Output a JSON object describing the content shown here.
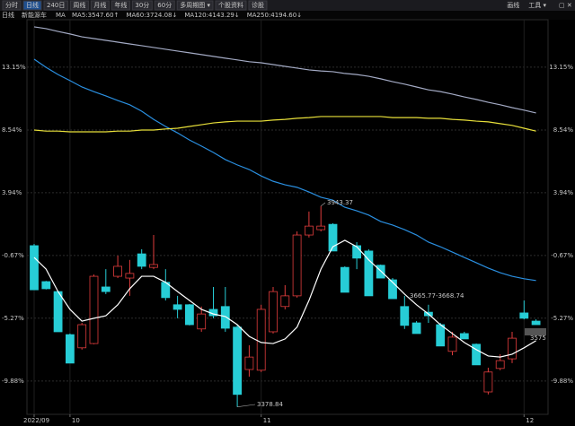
{
  "toolbar": {
    "tabs": [
      "分时",
      "日线",
      "240日",
      "周线",
      "月线",
      "年线",
      "30分",
      "60分",
      "多周期图 ▾",
      "个股资料",
      "诊股"
    ],
    "tools": [
      "画线",
      "工具 ▾"
    ]
  },
  "header": {
    "period": "日线",
    "name": "新能源车",
    "ma": "MA"
  },
  "chart_data": {
    "type": "candlestick",
    "categories": [
      "2022/09",
      null,
      null,
      "10",
      null,
      null,
      null,
      null,
      null,
      null,
      null,
      null,
      null,
      null,
      null,
      null,
      null,
      null,
      null,
      "11",
      null,
      null,
      null,
      null,
      null,
      null,
      null,
      null,
      null,
      null,
      null,
      null,
      null,
      null,
      null,
      null,
      null,
      null,
      null,
      null,
      null,
      "12",
      null
    ],
    "open": [
      3832,
      3731,
      3703,
      3582,
      3545,
      3557,
      3716,
      3746,
      3741,
      3809,
      3771,
      3729,
      3666,
      3666,
      3598,
      3653,
      3661,
      3603,
      3484,
      3482,
      3590,
      3661,
      3691,
      3862,
      3877,
      3892,
      3771,
      3832,
      3817,
      3777,
      3736,
      3661,
      3615,
      3645,
      3610,
      3535,
      3585,
      3555,
      3421,
      3487,
      3514,
      3643,
      3620
    ],
    "high": [
      3837,
      3733,
      3705,
      3585,
      3615,
      3751,
      3766,
      3804,
      3792,
      3822,
      3862,
      3766,
      3691,
      3668,
      3661,
      3716,
      3716,
      3610,
      3552,
      3666,
      3716,
      3721,
      3872,
      3928,
      3943.37,
      3895,
      3774,
      3842,
      3822,
      3779,
      3741,
      3691,
      3620,
      3666,
      3615,
      3590,
      3590,
      3557,
      3489,
      3527,
      3590,
      3678,
      3625
    ],
    "low": [
      3708,
      3709,
      3590,
      3502,
      3540,
      3555,
      3696,
      3741,
      3691,
      3766,
      3766,
      3678,
      3628,
      3608,
      3590,
      3628,
      3590,
      3378.84,
      3464,
      3477,
      3585,
      3653,
      3686,
      3855,
      3872,
      3817,
      3701,
      3766,
      3691,
      3741,
      3683,
      3598,
      3585,
      3615,
      3550,
      3524,
      3570,
      3497,
      3414,
      3482,
      3502,
      3625,
      3610
    ],
    "close": [
      3708,
      3711,
      3590,
      3502,
      3610,
      3746,
      3703,
      3774,
      3754,
      3774,
      3779,
      3686,
      3653,
      3610,
      3640,
      3635,
      3600,
      3414,
      3519,
      3653,
      3703,
      3691,
      3862,
      3887,
      3887,
      3817,
      3701,
      3797,
      3691,
      3741,
      3683,
      3608,
      3585,
      3635,
      3550,
      3575,
      3570,
      3497,
      3477,
      3509,
      3572,
      3628,
      3610
    ],
    "up_color": "#e03c3c",
    "down_color": "#27cdd6",
    "ylim": [
      3358,
      4467
    ],
    "yticks": [
      {
        "value": 4333.6,
        "label": "13.15%"
      },
      {
        "value": 4157.1,
        "label": "8.54%"
      },
      {
        "value": 3980.9,
        "label": "3.94%"
      },
      {
        "value": 3804.3,
        "label": "-0.67%"
      },
      {
        "value": 3628.2,
        "label": "-5.27%"
      },
      {
        "value": 3451.6,
        "label": "-9.88%"
      }
    ],
    "tick_colors": [
      "#e03c3c",
      "#e03c3c",
      "#e03c3c",
      "#e03c3c",
      "#30c030",
      "#30c030"
    ],
    "grid": true,
    "series": [
      {
        "name": "MA5:3547.60↑",
        "color": "#ffffff",
        "values": [
          3799,
          3766,
          3703,
          3653,
          3620,
          3628,
          3635,
          3666,
          3711,
          3746,
          3746,
          3729,
          3703,
          3678,
          3653,
          3640,
          3633,
          3610,
          3577,
          3560,
          3557,
          3570,
          3603,
          3678,
          3766,
          3829,
          3847,
          3829,
          3792,
          3761,
          3729,
          3696,
          3666,
          3640,
          3610,
          3585,
          3560,
          3540,
          3522,
          3519,
          3527,
          3545,
          3565
        ]
      },
      {
        "name": "MA60:3724.08↓",
        "color": "#2a8fe0",
        "values": [
          4356,
          4333,
          4313,
          4296,
          4278,
          4265,
          4253,
          4240,
          4228,
          4210,
          4187,
          4167,
          4149,
          4129,
          4112,
          4094,
          4074,
          4059,
          4046,
          4028,
          4013,
          4003,
          3996,
          3983,
          3968,
          3960,
          3940,
          3930,
          3918,
          3900,
          3890,
          3877,
          3862,
          3842,
          3829,
          3814,
          3799,
          3784,
          3769,
          3756,
          3746,
          3739,
          3734
        ]
      },
      {
        "name": "MA120:4143.29↓",
        "color": "#e8e03a",
        "values": [
          4157,
          4154,
          4154,
          4152,
          4152,
          4152,
          4152,
          4154,
          4154,
          4157,
          4157,
          4160,
          4162,
          4167,
          4172,
          4177,
          4180,
          4182,
          4182,
          4182,
          4185,
          4187,
          4190,
          4192,
          4195,
          4195,
          4195,
          4195,
          4195,
          4195,
          4192,
          4192,
          4192,
          4190,
          4190,
          4187,
          4185,
          4182,
          4180,
          4175,
          4170,
          4162,
          4154
        ]
      },
      {
        "name": "MA250:4194.60↓",
        "color": "#a3aac4",
        "values": [
          4447,
          4442,
          4434,
          4427,
          4419,
          4414,
          4409,
          4404,
          4399,
          4394,
          4389,
          4384,
          4379,
          4374,
          4369,
          4364,
          4359,
          4354,
          4349,
          4346,
          4341,
          4336,
          4331,
          4326,
          4323,
          4321,
          4316,
          4313,
          4308,
          4301,
          4293,
          4286,
          4278,
          4270,
          4265,
          4258,
          4250,
          4243,
          4235,
          4228,
          4220,
          4213,
          4205
        ]
      }
    ],
    "annotations": [
      "3943.37",
      "3378.84",
      "3665.77-3668.74",
      "3575"
    ]
  }
}
